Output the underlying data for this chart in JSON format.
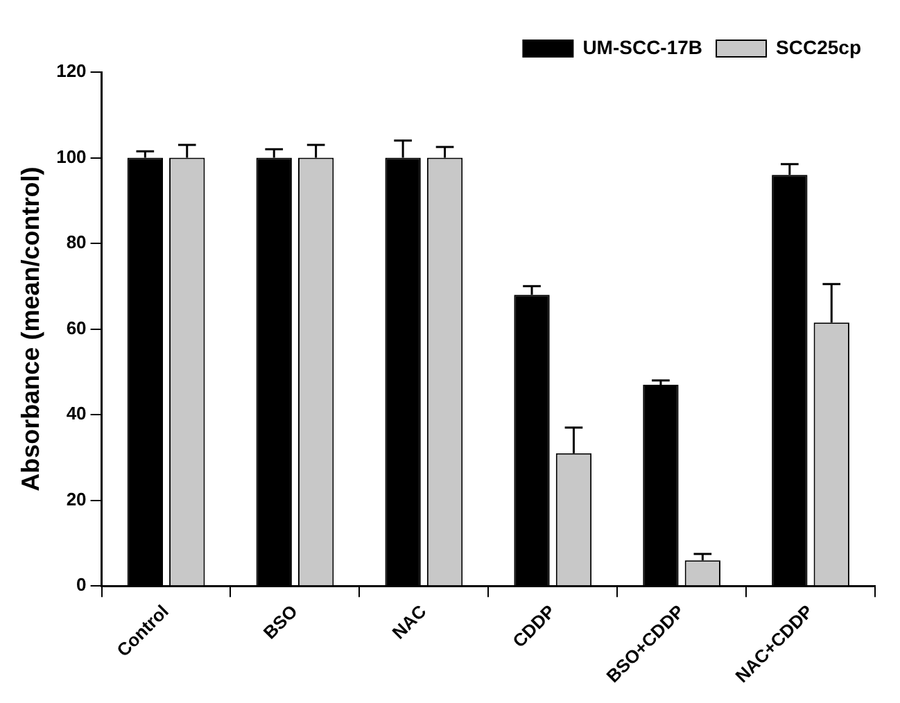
{
  "chart_data": {
    "type": "bar",
    "ylabel": "Absorbance (mean/control)",
    "categories": [
      "Control",
      "BSO",
      "NAC",
      "CDDP",
      "BSO+CDDP",
      "NAC+CDDP"
    ],
    "series": [
      {
        "name": "UM-SCC-17B",
        "color": "#000000",
        "values": [
          100,
          100,
          100,
          68,
          47,
          96
        ],
        "errors": [
          [
            100,
            101.5
          ],
          [
            100,
            102
          ],
          [
            100,
            104
          ],
          [
            68,
            70
          ],
          [
            47,
            48
          ],
          [
            96,
            98.5
          ]
        ]
      },
      {
        "name": "SCC25cp",
        "color": "#c8c8c8",
        "values": [
          100,
          100,
          100,
          31,
          6,
          61.5
        ],
        "errors": [
          [
            100,
            103
          ],
          [
            100,
            103
          ],
          [
            100,
            102.5
          ],
          [
            31,
            37
          ],
          [
            6,
            7.5
          ],
          [
            61.5,
            70.5
          ]
        ]
      }
    ],
    "ylim": [
      0,
      120
    ],
    "yticks": [
      0,
      20,
      40,
      60,
      80,
      100,
      120
    ],
    "grid": false,
    "legend": "top right"
  }
}
